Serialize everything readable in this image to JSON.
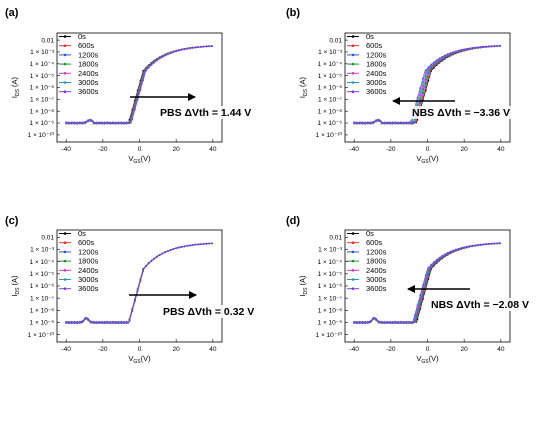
{
  "panels": [
    {
      "label": "(a)",
      "annotation": "PBS ΔVth = 1.44 V",
      "arrow_direction": "right",
      "chart_data": {
        "type": "line",
        "xlabel": "V_GS(V)",
        "ylabel": "I_DS (A)",
        "xlim": [
          -45,
          45
        ],
        "ylog": true,
        "x_ticks": [
          "-40",
          "-20",
          "0",
          "20",
          "40"
        ],
        "y_ticks": [
          "1 × 10⁻¹⁰",
          "1 × 10⁻⁹",
          "1 × 10⁻⁸",
          "1 × 10⁻⁷",
          "1 × 10⁻⁶",
          "1 × 10⁻⁵",
          "1 × 10⁻⁴",
          "1 × 10⁻³",
          "0.01"
        ],
        "legend_placement": "top-left",
        "series": [
          {
            "name": "0s",
            "vth_shift": 0
          },
          {
            "name": "600s",
            "vth_shift": 0.24
          },
          {
            "name": "1200s",
            "vth_shift": 0.48
          },
          {
            "name": "1800s",
            "vth_shift": 0.72
          },
          {
            "name": "2400s",
            "vth_shift": 0.96
          },
          {
            "name": "3000s",
            "vth_shift": 1.2
          },
          {
            "name": "3600s",
            "vth_shift": 1.44
          }
        ]
      }
    },
    {
      "label": "(b)",
      "annotation": "NBS ΔVth = −3.36 V",
      "arrow_direction": "left",
      "chart_data": {
        "type": "line",
        "xlabel": "V_GS(V)",
        "ylabel": "I_DS (A)",
        "xlim": [
          -45,
          45
        ],
        "ylog": true,
        "x_ticks": [
          "-40",
          "-20",
          "0",
          "20",
          "40"
        ],
        "y_ticks": [
          "1 × 10⁻¹⁰",
          "1 × 10⁻⁹",
          "1 × 10⁻⁸",
          "1 × 10⁻⁷",
          "1 × 10⁻⁶",
          "1 × 10⁻⁵",
          "1 × 10⁻⁴",
          "1 × 10⁻³",
          "0.01"
        ],
        "legend_placement": "top-left",
        "series": [
          {
            "name": "0s",
            "vth_shift": 0
          },
          {
            "name": "600s",
            "vth_shift": -0.56
          },
          {
            "name": "1200s",
            "vth_shift": -1.12
          },
          {
            "name": "1800s",
            "vth_shift": -1.68
          },
          {
            "name": "2400s",
            "vth_shift": -2.24
          },
          {
            "name": "3000s",
            "vth_shift": -2.8
          },
          {
            "name": "3600s",
            "vth_shift": -3.36
          }
        ]
      }
    },
    {
      "label": "(c)",
      "annotation": "PBS ΔVth = 0.32 V",
      "arrow_direction": "right",
      "chart_data": {
        "type": "line",
        "xlabel": "V_GS(V)",
        "ylabel": "I_DS (A)",
        "xlim": [
          -45,
          45
        ],
        "ylog": true,
        "x_ticks": [
          "-40",
          "-20",
          "0",
          "20",
          "40"
        ],
        "y_ticks": [
          "1 × 10⁻¹⁰",
          "1 × 10⁻⁹",
          "1 × 10⁻⁸",
          "1 × 10⁻⁷",
          "1 × 10⁻⁶",
          "1 × 10⁻⁵",
          "1 × 10⁻⁴",
          "1 × 10⁻³",
          "0.01"
        ],
        "legend_placement": "top-left",
        "series": [
          {
            "name": "0s",
            "vth_shift": 0
          },
          {
            "name": "600s",
            "vth_shift": 0.05
          },
          {
            "name": "1200s",
            "vth_shift": 0.11
          },
          {
            "name": "1800s",
            "vth_shift": 0.16
          },
          {
            "name": "2400s",
            "vth_shift": 0.21
          },
          {
            "name": "3000s",
            "vth_shift": 0.27
          },
          {
            "name": "3600s",
            "vth_shift": 0.32
          }
        ]
      }
    },
    {
      "label": "(d)",
      "annotation": "NBS ΔVth = −2.08 V",
      "arrow_direction": "left",
      "chart_data": {
        "type": "line",
        "xlabel": "V_GS(V)",
        "ylabel": "I_DS (A)",
        "xlim": [
          -45,
          45
        ],
        "ylog": true,
        "x_ticks": [
          "-40",
          "-20",
          "0",
          "20",
          "40"
        ],
        "y_ticks": [
          "1 × 10⁻¹⁰",
          "1 × 10⁻⁹",
          "1 × 10⁻⁸",
          "1 × 10⁻⁷",
          "1 × 10⁻⁶",
          "1 × 10⁻⁵",
          "1 × 10⁻⁴",
          "1 × 10⁻³",
          "0.01"
        ],
        "legend_placement": "top-left",
        "series": [
          {
            "name": "0s",
            "vth_shift": 0
          },
          {
            "name": "600s",
            "vth_shift": -0.35
          },
          {
            "name": "1200s",
            "vth_shift": -0.69
          },
          {
            "name": "1800s",
            "vth_shift": -1.04
          },
          {
            "name": "2400s",
            "vth_shift": -1.39
          },
          {
            "name": "3000s",
            "vth_shift": -1.73
          },
          {
            "name": "3600s",
            "vth_shift": -2.08
          }
        ]
      }
    }
  ],
  "colors": [
    "#000000",
    "#e8332b",
    "#3a4fd8",
    "#0f9a3c",
    "#c23bc9",
    "#1f9bb5",
    "#7b3fe0"
  ]
}
